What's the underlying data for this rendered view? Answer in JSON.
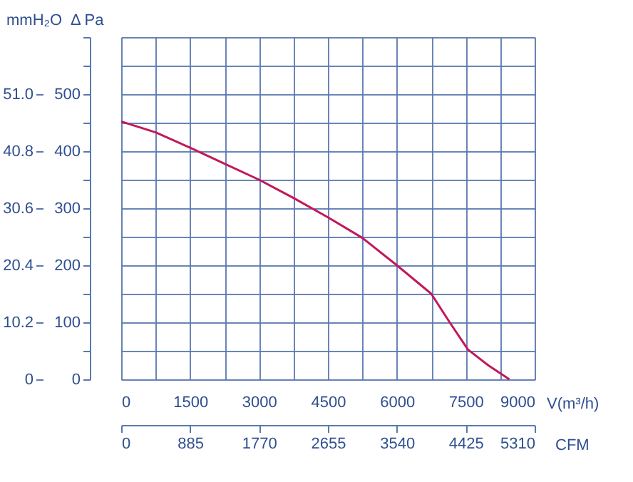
{
  "chart_data": {
    "type": "line",
    "xlabel": "V(m³/h)",
    "ylabel": "Δ Pa",
    "y2label": "mmH₂O",
    "x2label": "CFM",
    "series": [
      {
        "color": "#c2185b",
        "x": [
          0,
          750,
          1500,
          2250,
          3000,
          3750,
          4500,
          5250,
          6000,
          6750,
          7150,
          7550,
          8000,
          8450
        ],
        "values": [
          452,
          433,
          406,
          378,
          350,
          318,
          284,
          248,
          200,
          150,
          100,
          52,
          24,
          0
        ]
      }
    ],
    "xlim": [
      0,
      9000
    ],
    "xticks": [
      0,
      {
        "value": 750,
        "label": null
      },
      1500,
      {
        "value": 2250,
        "label": null
      },
      3000,
      {
        "value": 3750,
        "label": null
      },
      4500,
      {
        "value": 5250,
        "label": null
      },
      6000,
      {
        "value": 6750,
        "label": null
      },
      7500,
      {
        "value": 8250,
        "label": null
      },
      9000
    ],
    "ylim": [
      0,
      600
    ],
    "yticks": [
      0,
      {
        "value": 50,
        "label": null
      },
      100,
      {
        "value": 150,
        "label": null
      },
      200,
      {
        "value": 250,
        "label": null
      },
      300,
      {
        "value": 350,
        "label": null
      },
      400,
      {
        "value": 450,
        "label": null
      },
      500,
      {
        "value": 550,
        "label": null
      },
      {
        "value": 600,
        "label": null
      }
    ],
    "x2lim": [
      0,
      5310
    ],
    "x2ticks": [
      0,
      885,
      1770,
      2655,
      3540,
      4425,
      5310
    ],
    "y2lim": [
      0,
      61.2
    ],
    "y2ticks": [
      0,
      10.2,
      20.4,
      30.6,
      40.8,
      {
        "value": 51,
        "label": "51.0"
      }
    ],
    "grid": true,
    "marker": "none",
    "line_style": "solid"
  }
}
